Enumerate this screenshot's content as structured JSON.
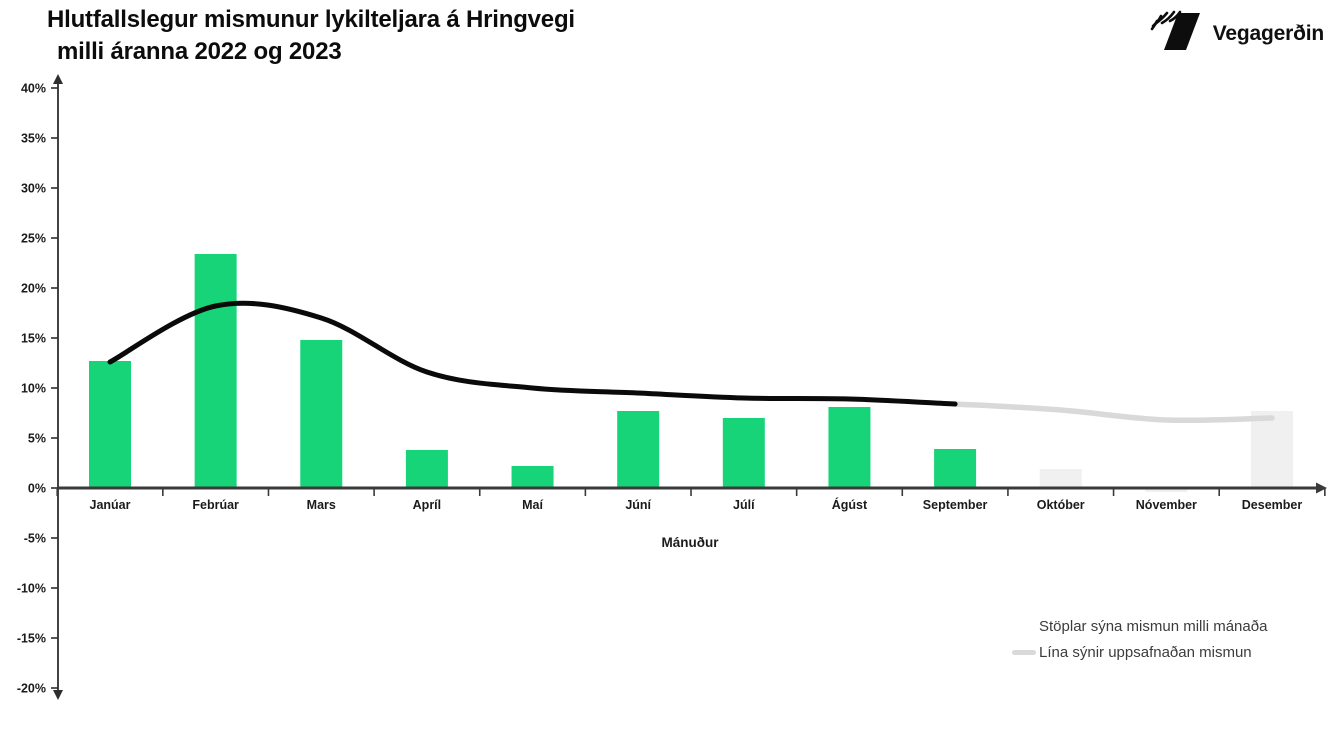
{
  "header": {
    "title_line1": "Hlutfallslegur mismunur lykilteljara á Hringvegi",
    "title_line2": "milli áranna 2022 og 2023",
    "logo_text": "Vegagerðin",
    "logo_icon": "vegagerdin-stripes-icon"
  },
  "legend": {
    "bars_label": "Stöplar sýna mismun milli mánaða",
    "line_label": "Lína sýnir uppsafnaðan mismun"
  },
  "chart_data": {
    "type": "bar",
    "title": "Hlutfallslegur mismunur lykilteljara á Hringvegi milli áranna 2022 og 2023",
    "xlabel": "Mánuður",
    "ylabel": "",
    "ylim": [
      -20,
      40
    ],
    "ytick_step": 5,
    "ytick_suffix": "%",
    "grid": false,
    "legend_position": "bottom-right",
    "categories": [
      "Janúar",
      "Febrúar",
      "Mars",
      "Apríl",
      "Maí",
      "Júní",
      "Júlí",
      "Ágúst",
      "September",
      "Október",
      "Nóvember",
      "Desember"
    ],
    "series": [
      {
        "name": "Stöplar sýna mismun milli mánaða",
        "type": "bar",
        "values": [
          12.7,
          23.4,
          14.8,
          3.8,
          2.2,
          7.7,
          7.0,
          8.1,
          3.9,
          1.9,
          -0.4,
          7.7
        ],
        "point_colors": [
          "#18D479",
          "#18D479",
          "#18D479",
          "#18D479",
          "#18D479",
          "#18D479",
          "#18D479",
          "#18D479",
          "#18D479",
          "#F0F0F0",
          "#F0F0F0",
          "#F0F0F0"
        ]
      },
      {
        "name": "Lína sýnir uppsafnaðan mismun",
        "type": "line",
        "values": [
          12.6,
          18.2,
          17.0,
          11.6,
          10.0,
          9.5,
          9.0,
          8.9,
          8.4,
          7.8,
          6.8,
          7.0
        ],
        "solid_color": "#0A0A0A",
        "projected_color": "#D9D9D9",
        "projected_from_index": 8
      }
    ],
    "colors": {
      "bar_actual": "#18D479",
      "bar_projected": "#F0F0F0",
      "line_actual": "#0A0A0A",
      "line_projected": "#D9D9D9",
      "axis": "#3A3A3A",
      "tick_label": "#1B1B1B"
    }
  }
}
